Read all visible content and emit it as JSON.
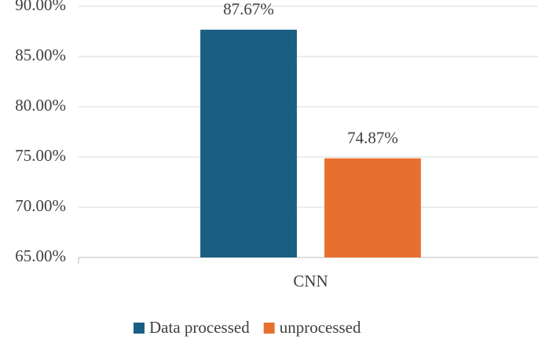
{
  "chart_data": {
    "type": "bar",
    "categories": [
      "CNN"
    ],
    "series": [
      {
        "name": "Data processed",
        "color": "#1a5e83",
        "values": [
          87.67
        ],
        "value_labels": [
          "87.67%"
        ]
      },
      {
        "name": "unprocessed",
        "color": "#e8702f",
        "values": [
          74.87
        ],
        "value_labels": [
          "74.87%"
        ]
      }
    ],
    "ylim": [
      65,
      90
    ],
    "yticks": [
      {
        "value": 65,
        "label": "65.00%"
      },
      {
        "value": 70,
        "label": "70.00%"
      },
      {
        "value": 75,
        "label": "75.00%"
      },
      {
        "value": 80,
        "label": "80.00%"
      },
      {
        "value": 85,
        "label": "85.00%"
      },
      {
        "value": 90,
        "label": "90.00%"
      }
    ],
    "grid": true,
    "legend": "bottom"
  }
}
